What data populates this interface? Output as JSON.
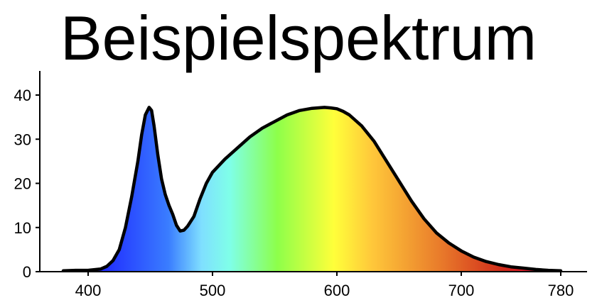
{
  "chart_data": {
    "type": "area",
    "title": "Beispielspektrum",
    "xlabel": "",
    "ylabel": "",
    "xlim": [
      360,
      790
    ],
    "ylim": [
      0,
      45
    ],
    "xticks": [
      400,
      500,
      600,
      700,
      780
    ],
    "yticks": [
      0,
      10,
      20,
      30,
      40
    ],
    "grid": false,
    "legend": "none",
    "fill": "visible-spectrum gradient",
    "series": [
      {
        "x": [
          380,
          390,
          400,
          410,
          415,
          420,
          425,
          430,
          435,
          440,
          443,
          446,
          449,
          451,
          453,
          456,
          459,
          462,
          465,
          468,
          471,
          474,
          477,
          480,
          485,
          490,
          495,
          500,
          510,
          520,
          530,
          540,
          550,
          560,
          570,
          580,
          590,
          595,
          600,
          605,
          610,
          620,
          630,
          640,
          650,
          660,
          670,
          680,
          690,
          700,
          710,
          720,
          730,
          740,
          750,
          760,
          770,
          780
        ],
        "y": [
          0.2,
          0.3,
          0.3,
          0.6,
          1.2,
          2.5,
          5.0,
          10.0,
          17.0,
          25.0,
          31.0,
          35.5,
          37.2,
          36.5,
          33.0,
          26.5,
          21.0,
          17.5,
          15.0,
          13.0,
          10.5,
          9.2,
          9.4,
          10.3,
          12.5,
          16.5,
          20.0,
          22.5,
          25.5,
          28.0,
          30.5,
          32.5,
          34.0,
          35.5,
          36.5,
          37.0,
          37.2,
          37.1,
          36.9,
          36.3,
          35.5,
          33.0,
          29.5,
          25.0,
          20.5,
          16.0,
          12.0,
          8.8,
          6.5,
          4.7,
          3.3,
          2.3,
          1.6,
          1.1,
          0.8,
          0.5,
          0.3,
          0.2
        ]
      }
    ],
    "colors": {
      "axis": "#000000",
      "outline": "#000000",
      "gradient": [
        "#1a1aff",
        "#3a7dff",
        "#7fdfff",
        "#7fffe8",
        "#8dff4a",
        "#ffff3a",
        "#ffc83a",
        "#e8782a",
        "#d02a1a",
        "#e01030",
        "#c00040"
      ]
    }
  }
}
